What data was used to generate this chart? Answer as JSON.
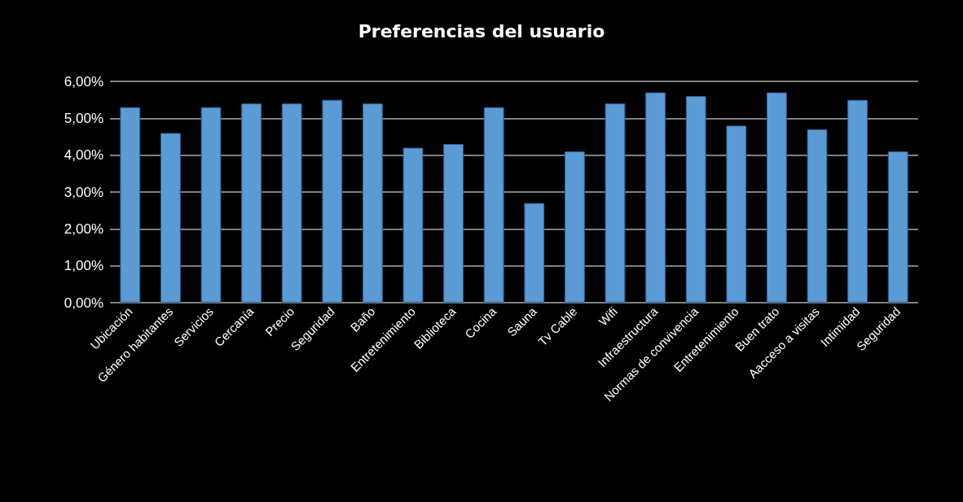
{
  "chart_data": {
    "type": "bar",
    "title": "Preferencias del usuario",
    "categories": [
      "Ubicación",
      "Género habitantes",
      "Servicios",
      "Cercanía",
      "Precio",
      "Seguridad",
      "Baño",
      "Entretenimiento",
      "Biblioteca",
      "Cocina",
      "Sauna",
      "Tv Cable",
      "Wifi",
      "Infraestructura",
      "Normas de convivencia",
      "Entretenimiento",
      "Buen trato",
      "Aacceso a visitas",
      "Intimidad",
      "Seguridad"
    ],
    "values": [
      5.3,
      4.6,
      5.3,
      5.4,
      5.4,
      5.5,
      5.4,
      4.2,
      4.3,
      5.3,
      2.7,
      4.1,
      5.4,
      5.7,
      5.6,
      4.8,
      5.7,
      4.7,
      5.5,
      4.1
    ],
    "color": "#5b9bd5",
    "ylim": [
      0,
      6
    ],
    "yticks": [
      {
        "value": 0,
        "label": "0,00%"
      },
      {
        "value": 1,
        "label": "1,00%"
      },
      {
        "value": 2,
        "label": "2,00%"
      },
      {
        "value": 3,
        "label": "3,00%"
      },
      {
        "value": 4,
        "label": "4,00%"
      },
      {
        "value": 5,
        "label": "5,00%"
      },
      {
        "value": 6,
        "label": "6,00%"
      }
    ],
    "grid": true
  }
}
